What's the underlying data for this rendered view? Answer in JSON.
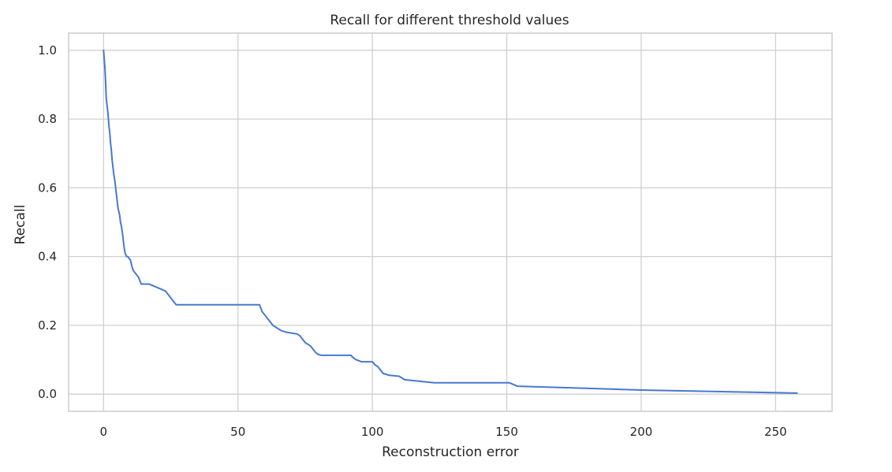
{
  "chart_data": {
    "type": "line",
    "title": "Recall for different threshold values",
    "xlabel": "Reconstruction error",
    "ylabel": "Recall",
    "xlim": [
      -13,
      271
    ],
    "ylim": [
      -0.05,
      1.05
    ],
    "xticks": [
      0,
      50,
      100,
      150,
      200,
      250
    ],
    "xtick_labels": [
      "0",
      "50",
      "100",
      "150",
      "200",
      "250"
    ],
    "yticks": [
      0.0,
      0.2,
      0.4,
      0.6,
      0.8,
      1.0
    ],
    "ytick_labels": [
      "0.0",
      "0.2",
      "0.4",
      "0.6",
      "0.8",
      "1.0"
    ],
    "grid": true,
    "line_color": "#4878d0",
    "grid_color": "#d0d0d0",
    "spine_color": "#cccccc",
    "series": [
      {
        "x": [
          0,
          0.5,
          0.8,
          1.0,
          1.3,
          1.6,
          1.8,
          2.0,
          2.3,
          2.6,
          2.9,
          3.2,
          3.5,
          3.8,
          4.0,
          4.2,
          4.5,
          4.8,
          5.1,
          5.4,
          5.7,
          6.0,
          6.3,
          6.6,
          7.0,
          7.3,
          7.6,
          8.0,
          8.3,
          8.6,
          9.0,
          10.0,
          10.3,
          10.6,
          11.0,
          13.0,
          14.0,
          17.0,
          20.0,
          23.0,
          24.0,
          25.0,
          26.0,
          27.0,
          58.0,
          58.5,
          59.0,
          60.0,
          61.0,
          62.0,
          63.0,
          64.0,
          65.0,
          66.0,
          68.0,
          72.0,
          73.0,
          74.0,
          75.0,
          76.0,
          77.0,
          78.0,
          79.0,
          80.0,
          81.0,
          82.0,
          92.0,
          93.0,
          94.0,
          95.0,
          96.0,
          100.0,
          101.0,
          102.0,
          103.0,
          104.0,
          105.0,
          106.0,
          110.0,
          112.0,
          123.0,
          151.0,
          154.0,
          200.0,
          258.0
        ],
        "y": [
          1.0,
          0.95,
          0.9,
          0.86,
          0.84,
          0.82,
          0.8,
          0.78,
          0.76,
          0.73,
          0.71,
          0.68,
          0.66,
          0.64,
          0.63,
          0.62,
          0.6,
          0.58,
          0.56,
          0.54,
          0.53,
          0.52,
          0.5,
          0.49,
          0.47,
          0.45,
          0.43,
          0.41,
          0.405,
          0.4,
          0.4,
          0.39,
          0.38,
          0.37,
          0.36,
          0.34,
          0.32,
          0.32,
          0.31,
          0.3,
          0.29,
          0.28,
          0.27,
          0.26,
          0.26,
          0.25,
          0.24,
          0.23,
          0.22,
          0.21,
          0.2,
          0.195,
          0.19,
          0.185,
          0.18,
          0.175,
          0.17,
          0.16,
          0.15,
          0.145,
          0.14,
          0.13,
          0.12,
          0.115,
          0.113,
          0.113,
          0.113,
          0.105,
          0.1,
          0.097,
          0.094,
          0.094,
          0.085,
          0.08,
          0.07,
          0.06,
          0.058,
          0.055,
          0.052,
          0.042,
          0.033,
          0.033,
          0.023,
          0.012,
          0.003
        ]
      }
    ]
  }
}
